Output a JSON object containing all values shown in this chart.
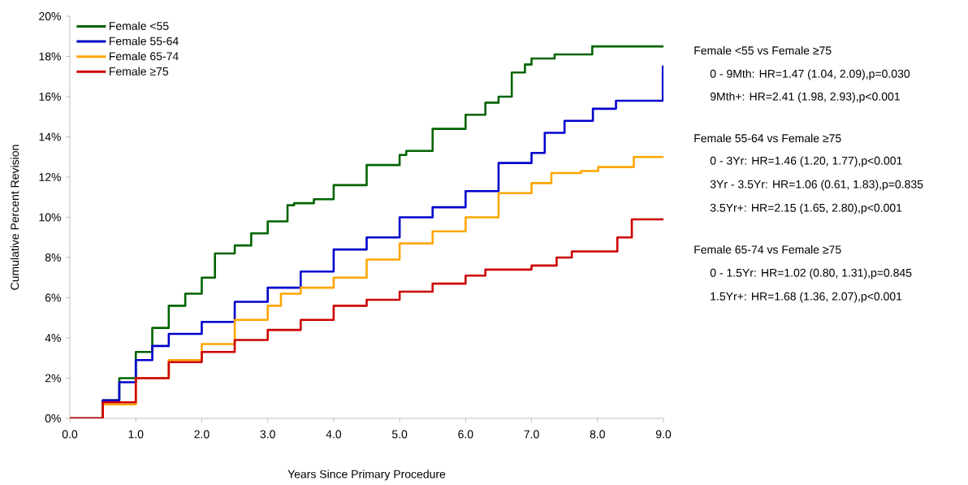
{
  "chart_data": {
    "type": "step",
    "xlabel": "Years Since Primary Procedure",
    "ylabel": "Cumulative Percent Revision",
    "xlim": [
      0,
      9
    ],
    "ylim": [
      0,
      20
    ],
    "xticks": [
      {
        "value": 0,
        "label": "0.0"
      },
      {
        "value": 1,
        "label": "1.0"
      },
      {
        "value": 2,
        "label": "2.0"
      },
      {
        "value": 3,
        "label": "3.0"
      },
      {
        "value": 4,
        "label": "4.0"
      },
      {
        "value": 5,
        "label": "5.0"
      },
      {
        "value": 6,
        "label": "6.0"
      },
      {
        "value": 7,
        "label": "7.0"
      },
      {
        "value": 8,
        "label": "8.0"
      },
      {
        "value": 9,
        "label": "9.0"
      }
    ],
    "yticks": [
      {
        "value": 0,
        "label": "0%"
      },
      {
        "value": 2,
        "label": "2%"
      },
      {
        "value": 4,
        "label": "4%"
      },
      {
        "value": 6,
        "label": "6%"
      },
      {
        "value": 8,
        "label": "8%"
      },
      {
        "value": 10,
        "label": "10%"
      },
      {
        "value": 12,
        "label": "12%"
      },
      {
        "value": 14,
        "label": "14%"
      },
      {
        "value": 16,
        "label": "16%"
      },
      {
        "value": 18,
        "label": "18%"
      },
      {
        "value": 20,
        "label": "20%"
      }
    ],
    "legend": "top left",
    "marker": "none",
    "line_style": "solid",
    "grid": false,
    "series": [
      {
        "name": "Female <55",
        "color": "#006400",
        "x": [
          0,
          0.5,
          0.75,
          1.0,
          1.25,
          1.5,
          1.75,
          2.0,
          2.2,
          2.5,
          2.75,
          3.0,
          3.3,
          3.4,
          3.7,
          4.0,
          4.5,
          5.0,
          5.1,
          5.5,
          6.0,
          6.3,
          6.5,
          6.7,
          6.9,
          7.0,
          7.35,
          7.92,
          9.0
        ],
        "values": [
          0,
          0.9,
          2.0,
          3.3,
          4.5,
          5.6,
          6.2,
          7.0,
          8.2,
          8.6,
          9.2,
          9.8,
          10.6,
          10.7,
          10.9,
          11.6,
          12.6,
          13.1,
          13.3,
          14.4,
          15.1,
          15.7,
          16.0,
          17.2,
          17.6,
          17.9,
          18.1,
          18.5,
          18.5
        ]
      },
      {
        "name": "Female 55-64",
        "color": "#0000cc",
        "x": [
          0,
          0.5,
          0.75,
          1.0,
          1.25,
          1.5,
          2.0,
          2.5,
          3.0,
          3.5,
          4.0,
          4.5,
          5.0,
          5.5,
          6.0,
          6.5,
          7.0,
          7.2,
          7.5,
          7.93,
          8.28,
          8.99,
          9.0
        ],
        "values": [
          0,
          0.9,
          1.8,
          2.9,
          3.6,
          4.2,
          4.8,
          5.8,
          6.5,
          7.3,
          8.4,
          9.0,
          10.0,
          10.5,
          11.3,
          12.7,
          13.2,
          14.2,
          14.8,
          15.4,
          15.8,
          17.5,
          17.5
        ]
      },
      {
        "name": "Female 65-74",
        "color": "#ffa500",
        "x": [
          0,
          0.5,
          1.0,
          1.5,
          2.0,
          2.5,
          3.0,
          3.2,
          3.5,
          4.0,
          4.5,
          5.0,
          5.5,
          6.0,
          6.5,
          7.0,
          7.3,
          7.75,
          8.01,
          8.55,
          9.0
        ],
        "values": [
          0,
          0.7,
          2.0,
          2.9,
          3.7,
          4.9,
          5.6,
          6.2,
          6.5,
          7.0,
          7.9,
          8.7,
          9.3,
          10.0,
          11.2,
          11.7,
          12.2,
          12.3,
          12.5,
          13.0,
          13.0
        ]
      },
      {
        "name": "Female ≥75",
        "color": "#cc0000",
        "x": [
          0,
          0.5,
          1.0,
          1.5,
          2.0,
          2.5,
          3.0,
          3.5,
          4.0,
          4.5,
          5.0,
          5.5,
          6.0,
          6.3,
          6.7,
          7.0,
          7.38,
          7.61,
          8.3,
          8.52,
          9.0
        ],
        "values": [
          0,
          0.8,
          2.0,
          2.8,
          3.3,
          3.9,
          4.4,
          4.9,
          5.6,
          5.9,
          6.3,
          6.7,
          7.1,
          7.4,
          7.4,
          7.6,
          8.0,
          8.3,
          9.0,
          9.9,
          9.9
        ]
      }
    ],
    "annotations": [
      "Female <55 vs Female ≥75",
      "0 - 9Mth: HR=1.47 (1.04, 2.09),p=0.030",
      "9Mth+: HR=2.41 (1.98, 2.93),p<0.001",
      "Female 55-64 vs Female ≥75",
      "0 - 3Yr: HR=1.46 (1.20, 1.77),p<0.001",
      "3Yr - 3.5Yr: HR=1.06 (0.61, 1.83),p=0.835",
      "3.5Yr+: HR=2.15 (1.65, 2.80),p<0.001",
      "Female 65-74 vs Female ≥75",
      "0 - 1.5Yr: HR=1.02 (0.80, 1.31),p=0.845",
      "1.5Yr+: HR=1.68 (1.36, 2.07),p<0.001"
    ]
  }
}
